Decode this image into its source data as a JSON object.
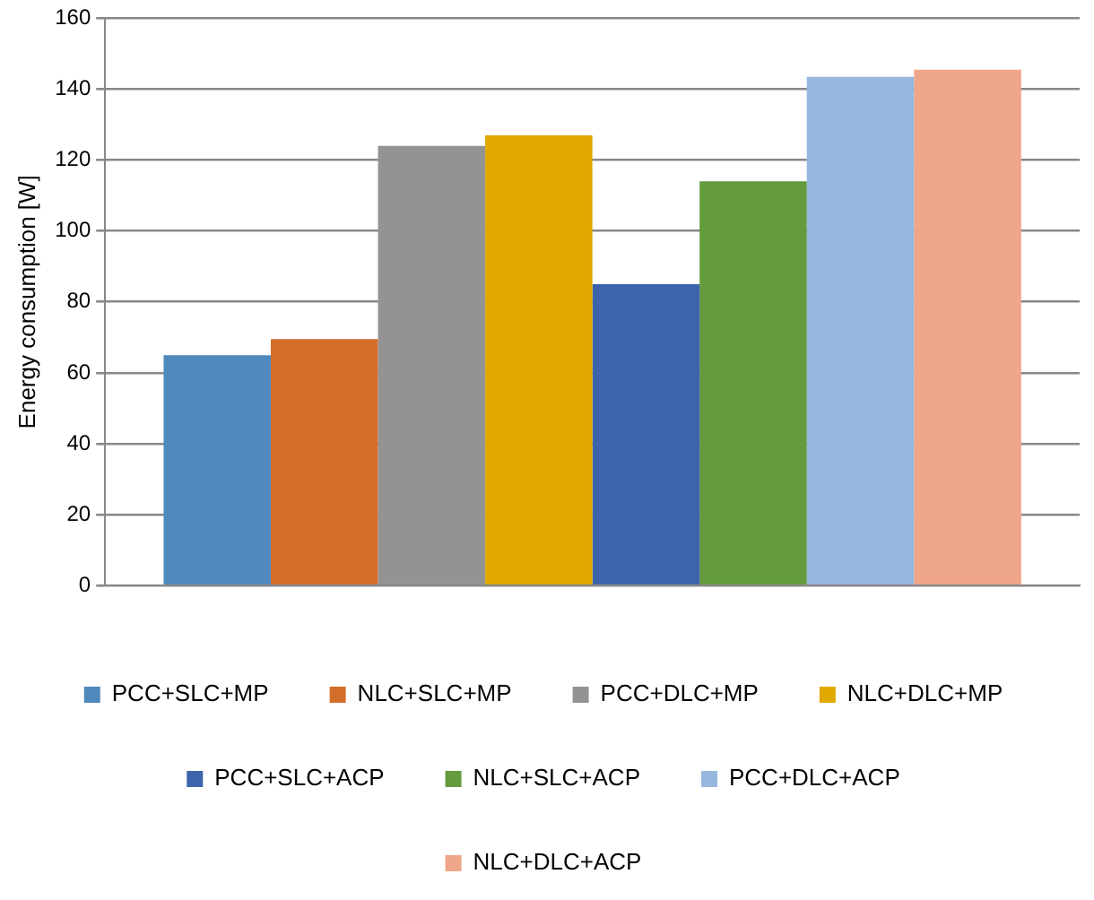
{
  "chart_data": {
    "type": "bar",
    "ylabel": "Energy consumption [W]",
    "categories": [
      null
    ],
    "series": [
      {
        "name": "PCC+SLC+MP",
        "color": "#4f89bd",
        "values": [
          65
        ]
      },
      {
        "name": "NLC+SLC+MP",
        "color": "#d36e2a",
        "values": [
          69.5
        ]
      },
      {
        "name": "PCC+DLC+MP",
        "color": "#939393",
        "values": [
          124
        ]
      },
      {
        "name": "NLC+DLC+MP",
        "color": "#e1a900",
        "values": [
          127
        ]
      },
      {
        "name": "PCC+SLC+ACP",
        "color": "#3d64ab",
        "values": [
          85
        ]
      },
      {
        "name": "NLC+SLC+ACP",
        "color": "#639b3e",
        "values": [
          114
        ]
      },
      {
        "name": "PCC+DLC+ACP",
        "color": "#97b8de",
        "values": [
          143.5
        ]
      },
      {
        "name": "NLC+DLC+ACP",
        "color": "#f0a688",
        "values": [
          145.5
        ]
      }
    ],
    "ylim": [
      0,
      160
    ],
    "yticks": [
      0,
      20,
      40,
      60,
      80,
      100,
      120,
      140,
      160
    ],
    "grid": "y",
    "legend": "bottom"
  }
}
